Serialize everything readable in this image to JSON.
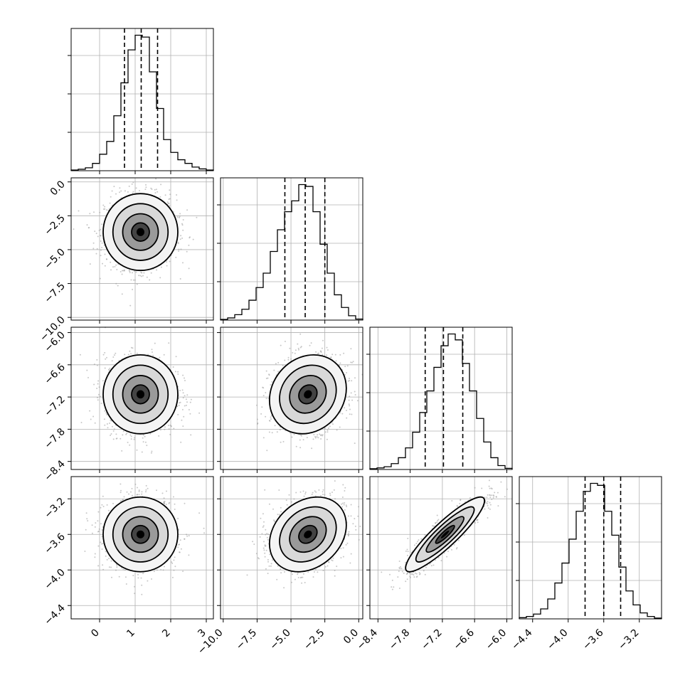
{
  "chart_data": [
    {
      "type": "histogram",
      "panel": "p0-0",
      "param_index": 0,
      "x_range": [
        -0.8,
        3.2
      ],
      "bin_start": -0.8,
      "bin_width": 0.2,
      "counts": [
        20,
        40,
        80,
        200,
        450,
        800,
        1500,
        2400,
        3300,
        3700,
        3650,
        2700,
        1700,
        850,
        500,
        300,
        200,
        100,
        50,
        20
      ],
      "quantiles": [
        0.7,
        1.17,
        1.63
      ],
      "xticks": [
        "0",
        "1",
        "2",
        "3"
      ]
    },
    {
      "type": "scatter_density",
      "panel": "p1-0",
      "x_param": 0,
      "y_param": 1,
      "center": [
        1.15,
        -3.7
      ],
      "sigma": [
        0.5,
        1.35
      ],
      "rho": 0.0,
      "yticks": [
        "0.0",
        "−2.5",
        "−5.0",
        "−7.5",
        "−10.0"
      ],
      "ylim": [
        -10.2,
        0.3
      ]
    },
    {
      "type": "histogram",
      "panel": "p1-1",
      "param_index": 1,
      "x_range": [
        -10.2,
        0.3
      ],
      "bin_start": -10.2,
      "bin_width": 0.525,
      "counts": [
        20,
        60,
        150,
        300,
        550,
        900,
        1300,
        1900,
        2500,
        3000,
        3300,
        3750,
        3700,
        3000,
        2100,
        1300,
        700,
        350,
        120,
        30
      ],
      "quantiles": [
        -5.45,
        -3.95,
        -2.5
      ],
      "xticks": [
        "−10.0",
        "−7.5",
        "−5.0",
        "−2.5",
        "0.0"
      ]
    },
    {
      "type": "scatter_density",
      "panel": "p2-0",
      "x_param": 0,
      "y_param": 2,
      "center": [
        1.15,
        -7.15
      ],
      "sigma": [
        0.5,
        0.35
      ],
      "rho": 0.0,
      "yticks": [
        "−6.0",
        "−6.6",
        "−7.2",
        "−7.8",
        "−8.4"
      ],
      "ylim": [
        -8.55,
        -5.9
      ]
    },
    {
      "type": "scatter_density",
      "panel": "p2-1",
      "x_param": 1,
      "y_param": 2,
      "center": [
        -3.75,
        -7.15
      ],
      "sigma": [
        1.35,
        0.35
      ],
      "rho": 0.15
    },
    {
      "type": "histogram",
      "panel": "p2-2",
      "param_index": 2,
      "x_range": [
        -8.55,
        -5.9
      ],
      "bin_start": -8.55,
      "bin_width": 0.1325,
      "counts": [
        20,
        40,
        70,
        150,
        300,
        550,
        950,
        1450,
        2000,
        2600,
        3150,
        3450,
        3300,
        2700,
        2000,
        1300,
        700,
        300,
        100,
        30
      ],
      "quantiles": [
        -7.52,
        -7.18,
        -6.82
      ],
      "xticks": [
        "−8.4",
        "−7.8",
        "−7.2",
        "−6.6",
        "−6.0"
      ]
    },
    {
      "type": "scatter_density",
      "panel": "p3-0",
      "x_param": 0,
      "y_param": 3,
      "center": [
        1.15,
        -3.6
      ],
      "sigma": [
        0.5,
        0.2
      ],
      "rho": 0.0,
      "yticks": [
        "−3.2",
        "−3.6",
        "−4.0",
        "−4.4"
      ],
      "ylim": [
        -4.55,
        -2.85
      ]
    },
    {
      "type": "scatter_density",
      "panel": "p3-1",
      "x_param": 1,
      "y_param": 3,
      "center": [
        -3.75,
        -3.6
      ],
      "sigma": [
        1.35,
        0.2
      ],
      "rho": 0.25
    },
    {
      "type": "scatter_density",
      "panel": "p3-2",
      "x_param": 2,
      "y_param": 3,
      "center": [
        -7.15,
        -3.6
      ],
      "sigma": [
        0.35,
        0.2
      ],
      "rho": 0.9
    },
    {
      "type": "histogram",
      "panel": "p3-3",
      "param_index": 3,
      "x_range": [
        -4.55,
        -2.95
      ],
      "bin_start": -4.55,
      "bin_width": 0.08,
      "counts": [
        30,
        60,
        120,
        250,
        500,
        900,
        1400,
        2000,
        2700,
        3200,
        3400,
        3350,
        2700,
        2100,
        1300,
        700,
        350,
        150,
        60,
        20
      ],
      "quantiles": [
        -3.81,
        -3.6,
        -3.41
      ],
      "xticks": [
        "−4.4",
        "−4.0",
        "−3.6",
        "−3.2"
      ]
    }
  ],
  "style": {
    "line_color": "#000000",
    "grid_color": "#b0b0b0",
    "point_color": "#9a9a9a",
    "density_dark": "#000000",
    "density_light": "#ffffff"
  }
}
